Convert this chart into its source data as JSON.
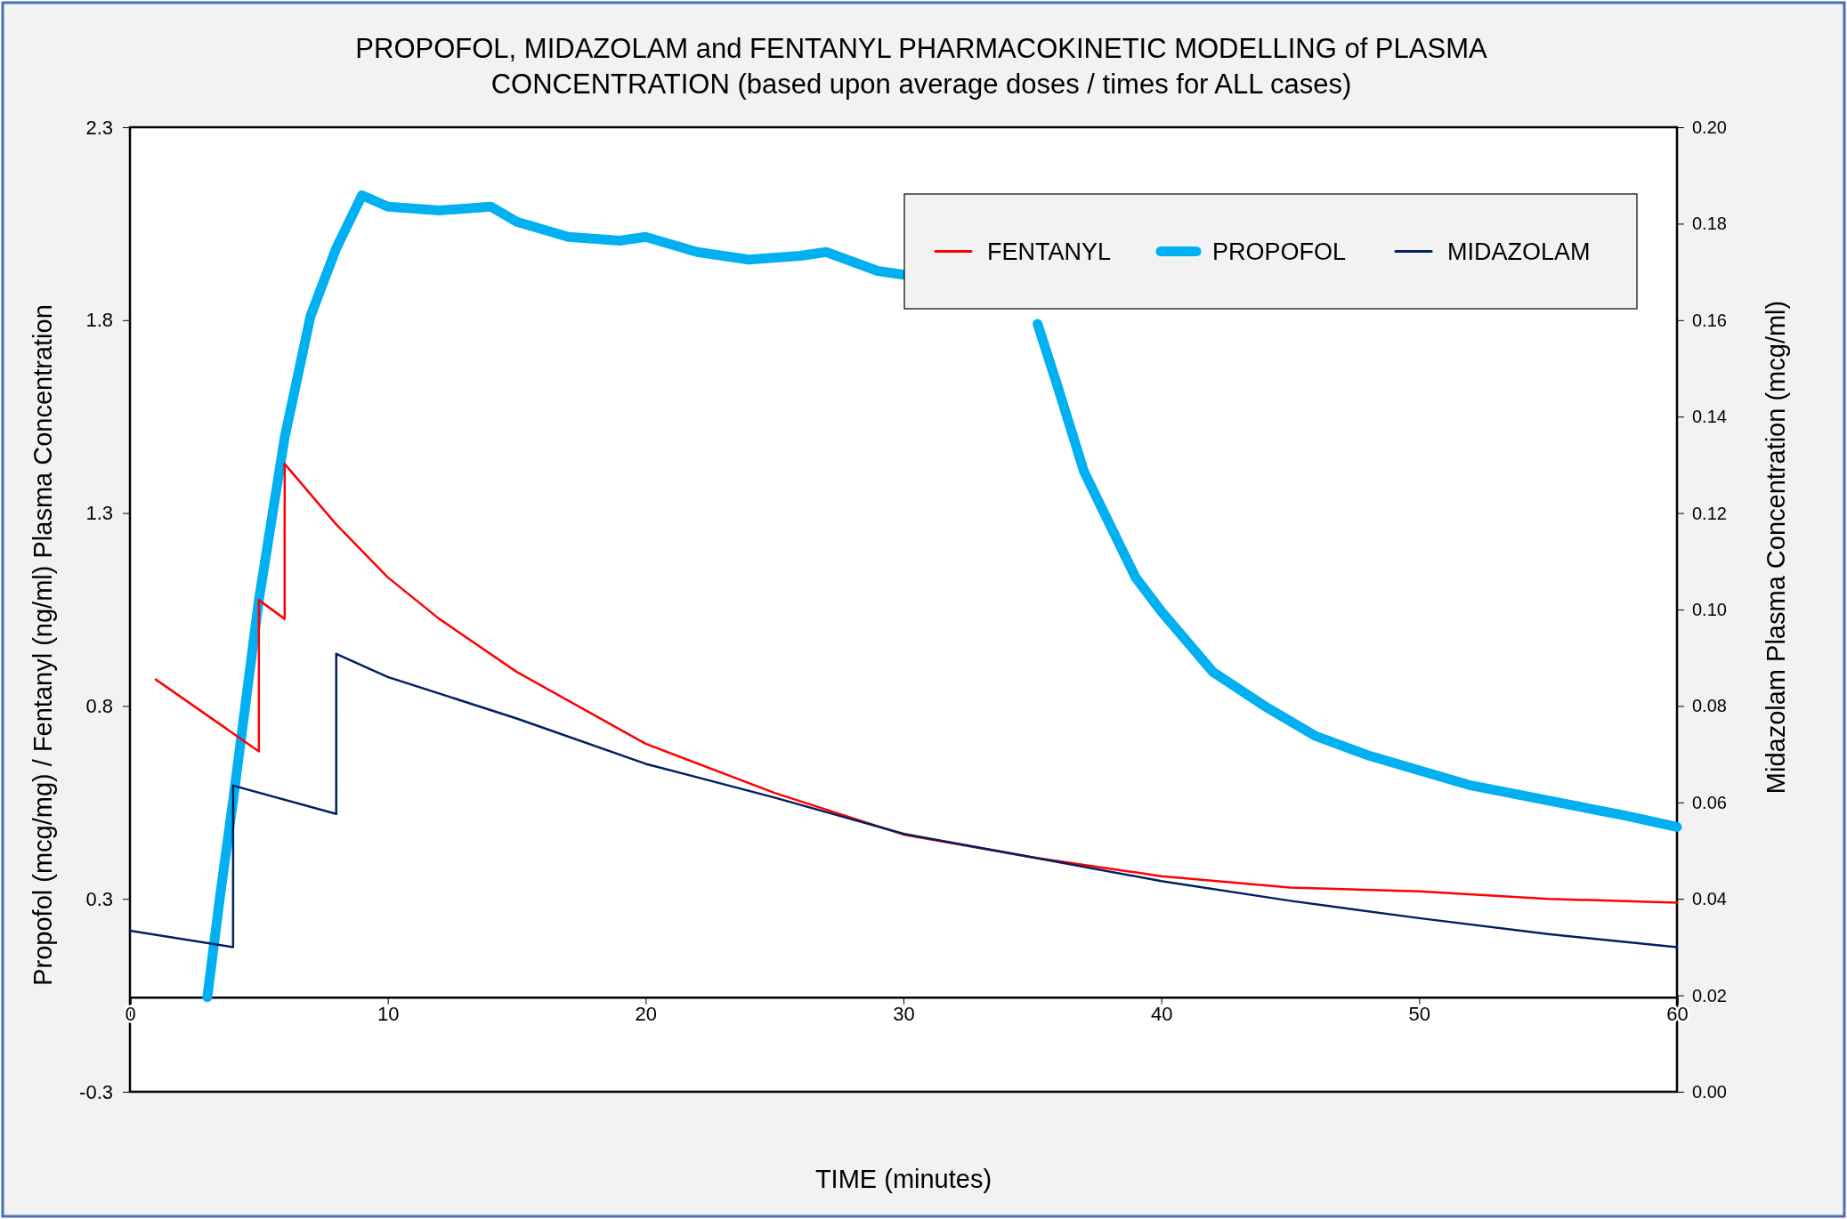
{
  "chart_data": {
    "type": "line",
    "title": "PROPOFOL, MIDAZOLAM and FENTANYL PHARMACOKINETIC MODELLING of PLASMA CONCENTRATION (based upon average doses / times for ALL cases)",
    "xlabel": "TIME (minutes)",
    "ylabel": "Propofol (mcg/mg)  / Fentanyl (ng/ml)  Plasma Concentration",
    "y2label": "Midazolam Plasma Concentration (mcg/ml)",
    "xlim": [
      0,
      60
    ],
    "xticks": [
      0,
      10,
      20,
      30,
      40,
      50,
      60
    ],
    "ylim": [
      -0.25,
      2.3
    ],
    "yticks": [
      {
        "value": -0.25,
        "label": "-0.3"
      },
      {
        "value": 0.26,
        "label": "0.3"
      },
      {
        "value": 0.77,
        "label": "0.8"
      },
      {
        "value": 1.28,
        "label": "1.3"
      },
      {
        "value": 1.79,
        "label": "1.8"
      },
      {
        "value": 2.3,
        "label": "2.3"
      }
    ],
    "y2lim": [
      0,
      0.2
    ],
    "y2ticks": [
      {
        "value": 0,
        "label": "0.00"
      },
      {
        "value": 0.02,
        "label": "0.02"
      },
      {
        "value": 0.04,
        "label": "0.04"
      },
      {
        "value": 0.06,
        "label": "0.06"
      },
      {
        "value": 0.08,
        "label": "0.08"
      },
      {
        "value": 0.1,
        "label": "0.10"
      },
      {
        "value": 0.12,
        "label": "0.12"
      },
      {
        "value": 0.14,
        "label": "0.14"
      },
      {
        "value": 0.16,
        "label": "0.16"
      },
      {
        "value": 0.18,
        "label": "0.18"
      },
      {
        "value": 0.2,
        "label": "0.20"
      }
    ],
    "legend": "top right",
    "grid": false,
    "series": [
      {
        "name": "FENTANYL",
        "color": "#ff0000",
        "x": [
          1,
          5,
          5,
          6,
          6,
          8,
          10,
          12,
          15,
          20,
          25,
          30,
          35,
          40,
          45,
          50,
          55,
          60
        ],
        "values": [
          0.84,
          0.65,
          1.05,
          1.0,
          1.41,
          1.25,
          1.11,
          1.0,
          0.86,
          0.67,
          0.54,
          0.43,
          0.37,
          0.32,
          0.29,
          0.28,
          0.26,
          0.25
        ]
      },
      {
        "name": "PROPOFOL",
        "color": "#00b0f0",
        "x": [
          3,
          3.5,
          4,
          5,
          6,
          7,
          8,
          9,
          10,
          12,
          14,
          15,
          17,
          19,
          20,
          22,
          24,
          26,
          27,
          29,
          30,
          31,
          32,
          33,
          34,
          35.2,
          36,
          37,
          38,
          39,
          40,
          42,
          44,
          46,
          48,
          50,
          52,
          55,
          58,
          60
        ],
        "values": [
          0.0,
          0.27,
          0.52,
          1.05,
          1.48,
          1.8,
          1.98,
          2.12,
          2.09,
          2.08,
          2.09,
          2.05,
          2.01,
          2.0,
          2.01,
          1.97,
          1.95,
          1.96,
          1.97,
          1.92,
          1.91,
          null,
          null,
          null,
          null,
          1.78,
          1.61,
          1.39,
          1.25,
          1.11,
          1.02,
          0.86,
          0.77,
          0.69,
          0.64,
          0.6,
          0.56,
          0.52,
          0.48,
          0.45
        ]
      },
      {
        "name": "MIDAZOLAM",
        "color": "#002060",
        "axis": "y2",
        "x": [
          0,
          4,
          4,
          8,
          8,
          10,
          15,
          20,
          25,
          30,
          35,
          40,
          45,
          50,
          55,
          60
        ],
        "values": [
          0.0334,
          0.03,
          0.0635,
          0.0576,
          0.0908,
          0.086,
          0.0774,
          0.068,
          0.061,
          0.0535,
          0.0486,
          0.0437,
          0.0396,
          0.036,
          0.0327,
          0.03
        ]
      }
    ]
  }
}
